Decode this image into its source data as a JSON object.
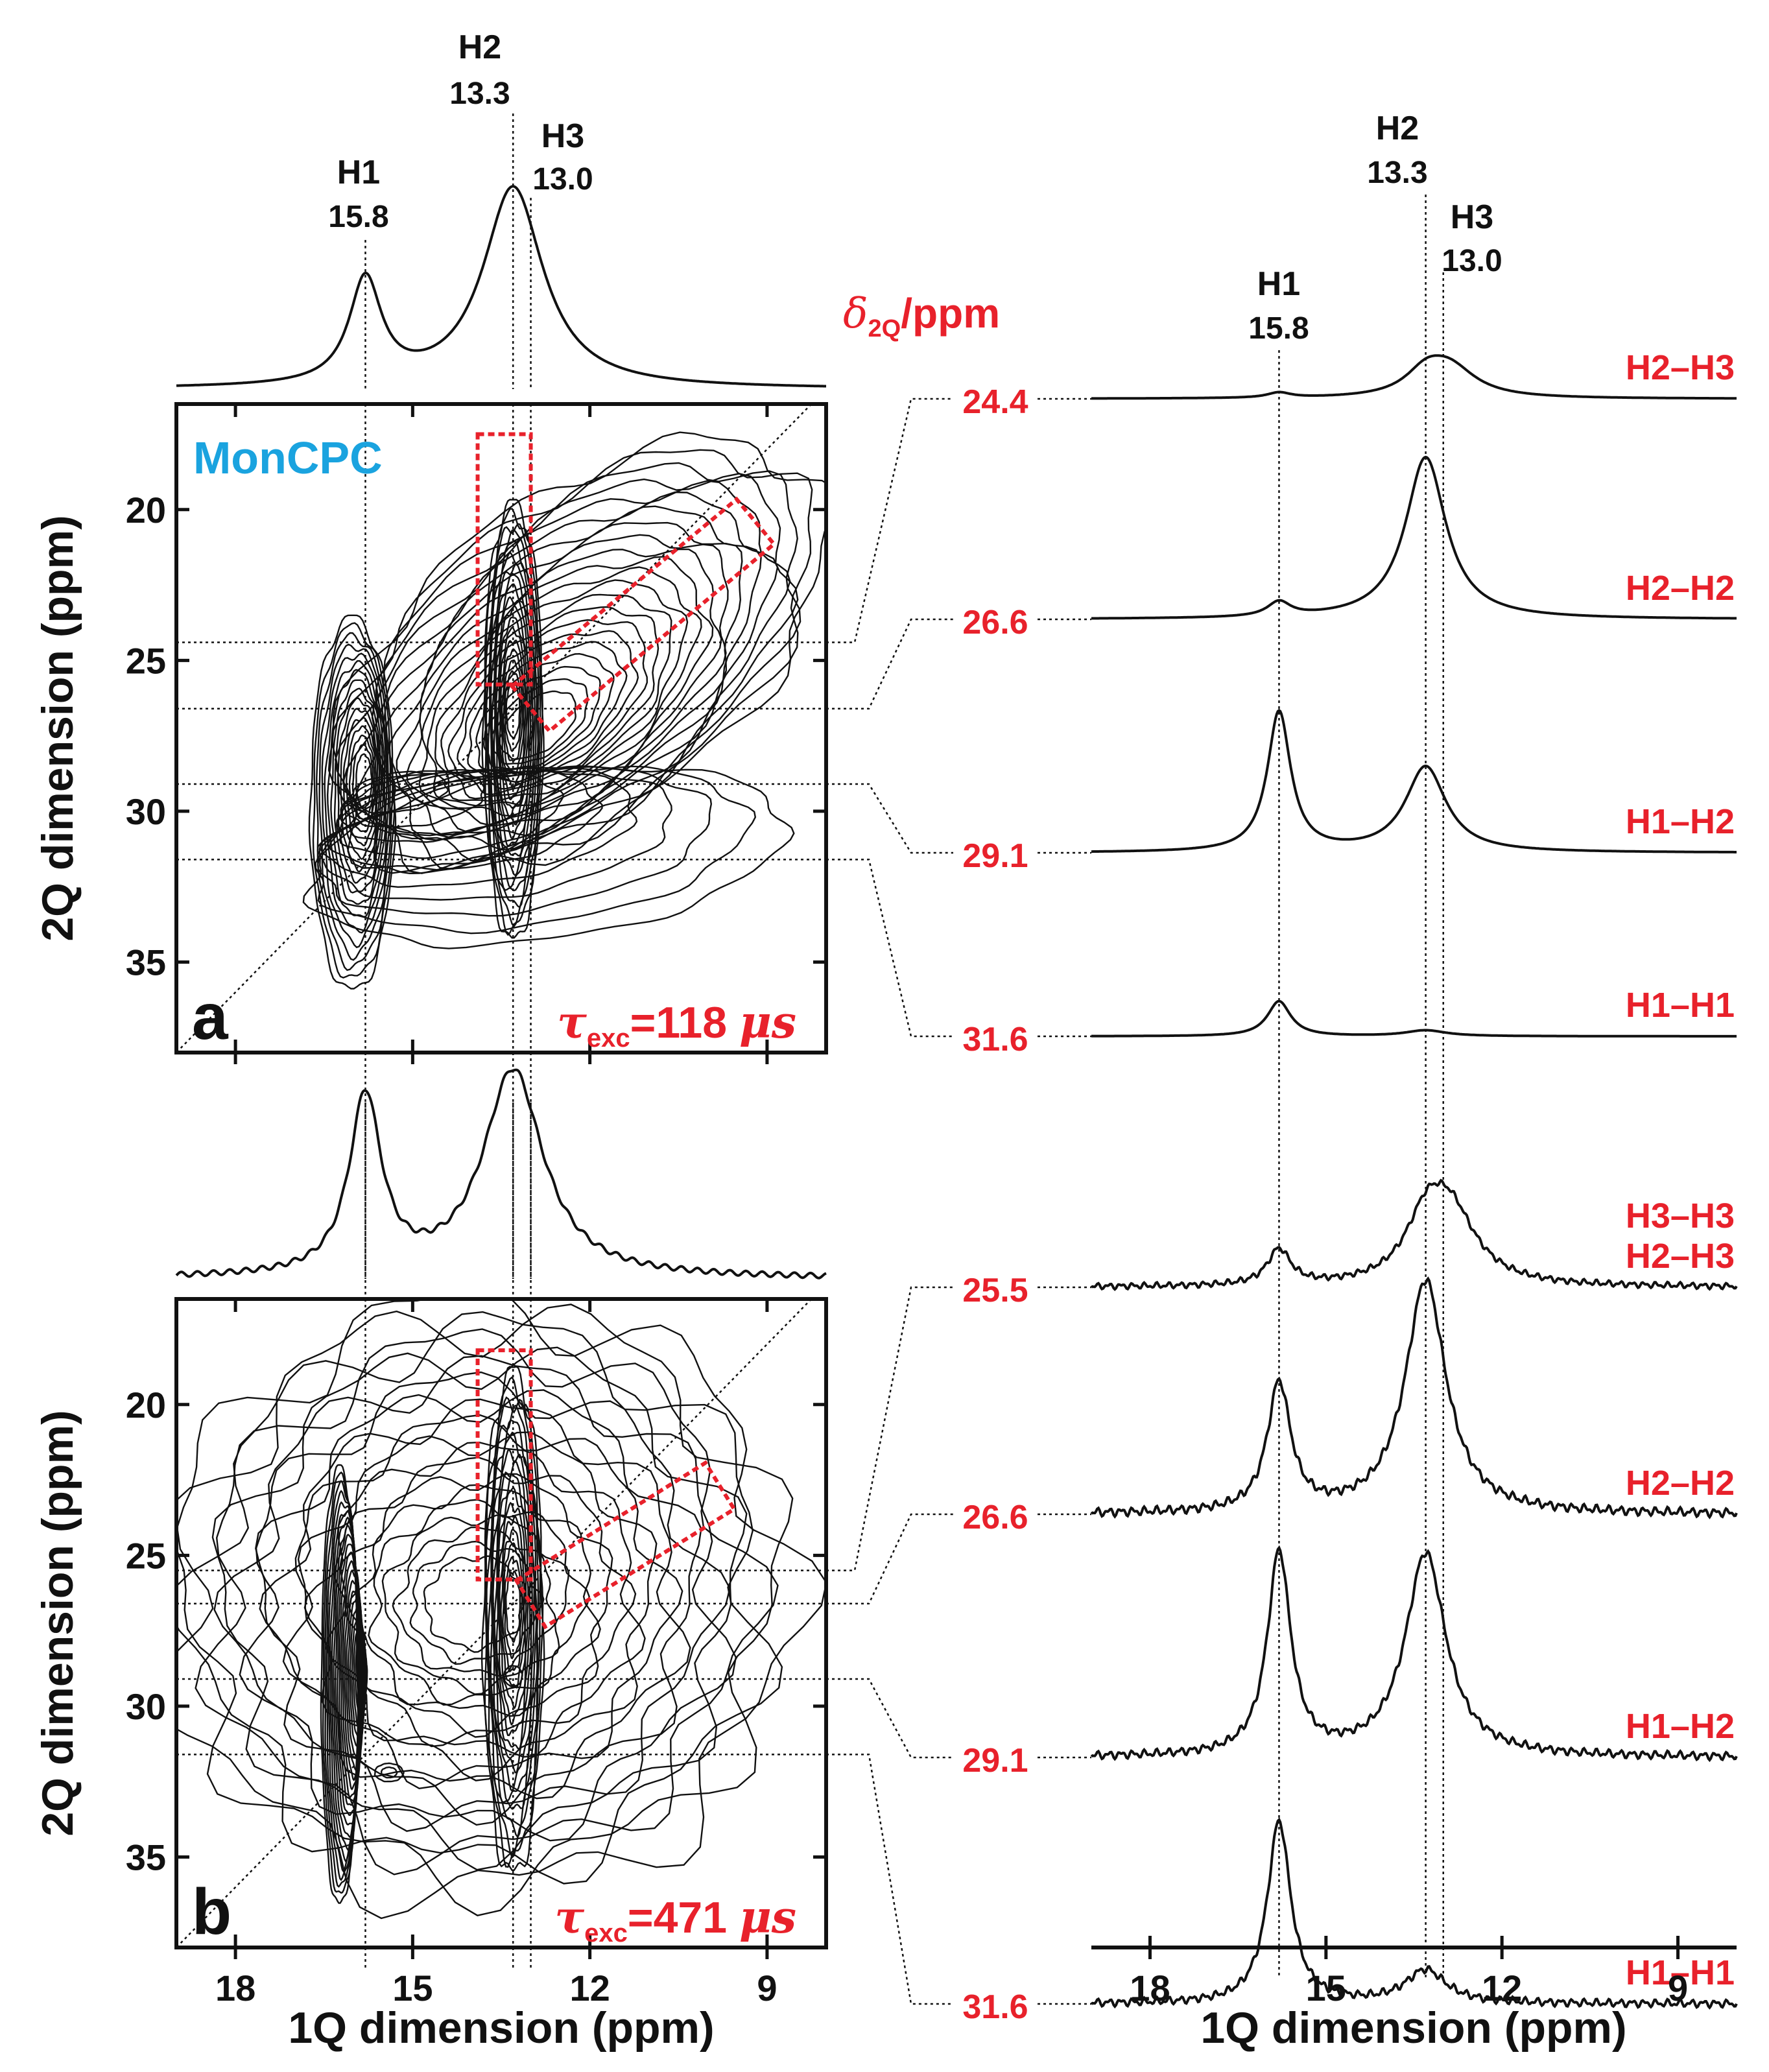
{
  "colors": {
    "ink": "#111111",
    "accent": "#e8212b",
    "brand": "#1aa3df"
  },
  "panel_a": {
    "letter": "a",
    "sample": "MonCPC",
    "tau_symbol": "τ",
    "tau_sub": "exc",
    "tau_value": "=118 ",
    "tau_unit": "μs",
    "peaks": [
      {
        "label": "H1",
        "ppm_text": "15.8"
      },
      {
        "label": "H2",
        "ppm_text": "13.3"
      },
      {
        "label": "H3",
        "ppm_text": "13.0"
      }
    ]
  },
  "panel_b": {
    "letter": "b",
    "tau_symbol": "τ",
    "tau_sub": "exc",
    "tau_value": "=471 ",
    "tau_unit": "μs"
  },
  "right": {
    "delta_symbol": "δ",
    "delta_sub": "2Q",
    "delta_unit": "/ppm",
    "peaks": [
      {
        "label": "H1",
        "ppm_text": "15.8"
      },
      {
        "label": "H2",
        "ppm_text": "13.3"
      },
      {
        "label": "H3",
        "ppm_text": "13.0"
      }
    ]
  },
  "chart_data": [
    {
      "type": "contour",
      "panel": "a",
      "xlabel": "1Q dimension (ppm)",
      "ylabel": "2Q dimension (ppm)",
      "xlim": [
        19.0,
        8.0
      ],
      "ylim": [
        16.5,
        38.0
      ],
      "x_ticks": [
        18,
        15,
        12,
        9
      ],
      "y_ticks": [
        20,
        25,
        30,
        35
      ],
      "peak_positions_ppm": [
        15.8,
        13.3,
        13.0
      ],
      "slice_positions_ppm": [
        24.4,
        26.6,
        29.1,
        31.6
      ],
      "contour_centers": [
        {
          "x": 15.8,
          "y": 28.9
        },
        {
          "x": 13.3,
          "y": 26.6
        }
      ],
      "highlight_boxes": [
        {
          "kind": "vertical",
          "x_range": [
            13.9,
            13.0
          ],
          "y_range": [
            17.5,
            25.8
          ]
        },
        {
          "kind": "diagonal",
          "from": [
            13.0,
            26.6
          ],
          "to": [
            9.2,
            20.4
          ]
        }
      ]
    },
    {
      "type": "contour",
      "panel": "b",
      "xlabel": "1Q dimension (ppm)",
      "ylabel": "2Q dimension (ppm)",
      "xlim": [
        19.0,
        8.0
      ],
      "ylim": [
        16.5,
        38.0
      ],
      "x_ticks": [
        18,
        15,
        12,
        9
      ],
      "y_ticks": [
        20,
        25,
        30,
        35
      ],
      "peak_positions_ppm": [
        15.8,
        13.3,
        13.0
      ],
      "slice_positions_ppm": [
        25.5,
        26.6,
        29.1,
        31.6
      ],
      "contour_centers": [
        {
          "x": 15.8,
          "y": 28.9
        },
        {
          "x": 13.3,
          "y": 26.6
        },
        {
          "x": 13.3,
          "y": 29.0
        },
        {
          "x": 15.4,
          "y": 32.2
        }
      ],
      "highlight_boxes": [
        {
          "kind": "vertical",
          "x_range": [
            13.9,
            13.0
          ],
          "y_range": [
            18.2,
            25.8
          ]
        },
        {
          "kind": "diagonal",
          "from": [
            13.0,
            26.6
          ],
          "to": [
            9.8,
            22.7
          ]
        }
      ]
    },
    {
      "type": "line",
      "panel": "right",
      "xlabel": "1Q dimension (ppm)",
      "xlim": [
        19.0,
        8.0
      ],
      "x_ticks": [
        18,
        15,
        12,
        9
      ],
      "series": [
        {
          "group": "a",
          "delta_2q": "24.4",
          "assignment": [
            "H2–H3"
          ],
          "peaks": [
            {
              "x": 15.8,
              "h": 0.04
            },
            {
              "x": 13.3,
              "h": 0.16
            },
            {
              "x": 12.9,
              "h": 0.23
            }
          ]
        },
        {
          "group": "a",
          "delta_2q": "26.6",
          "assignment": [
            "H2–H2"
          ],
          "peaks": [
            {
              "x": 15.8,
              "h": 0.09
            },
            {
              "x": 13.3,
              "h": 1.0
            }
          ]
        },
        {
          "group": "a",
          "delta_2q": "29.1",
          "assignment": [
            "H1–H2"
          ],
          "peaks": [
            {
              "x": 15.8,
              "h": 0.72
            },
            {
              "x": 13.3,
              "h": 0.44
            }
          ]
        },
        {
          "group": "a",
          "delta_2q": "31.6",
          "assignment": [
            "H1–H1"
          ],
          "peaks": [
            {
              "x": 15.8,
              "h": 0.18
            },
            {
              "x": 13.3,
              "h": 0.03
            }
          ]
        },
        {
          "group": "b",
          "delta_2q": "25.5",
          "assignment": [
            "H3–H3",
            "H2–H3"
          ],
          "peaks": [
            {
              "x": 15.8,
              "h": 0.22
            },
            {
              "x": 13.3,
              "h": 0.3
            },
            {
              "x": 12.9,
              "h": 0.45
            }
          ]
        },
        {
          "group": "b",
          "delta_2q": "26.6",
          "assignment": [
            "H2–H2"
          ],
          "peaks": [
            {
              "x": 15.8,
              "h": 0.55
            },
            {
              "x": 13.3,
              "h": 1.0
            }
          ]
        },
        {
          "group": "b",
          "delta_2q": "29.1",
          "assignment": [
            "H1–H2"
          ],
          "peaks": [
            {
              "x": 15.8,
              "h": 0.95
            },
            {
              "x": 13.3,
              "h": 0.95
            }
          ]
        },
        {
          "group": "b",
          "delta_2q": "31.6",
          "assignment": [
            "H1–H1"
          ],
          "peaks": [
            {
              "x": 15.8,
              "h": 0.88
            },
            {
              "x": 13.3,
              "h": 0.16
            }
          ]
        }
      ]
    },
    {
      "type": "line",
      "panel": "projection-a",
      "peaks": [
        {
          "x": 15.8,
          "h": 0.52
        },
        {
          "x": 13.3,
          "h": 1.0
        }
      ]
    },
    {
      "type": "line",
      "panel": "projection-b",
      "peaks": [
        {
          "x": 15.8,
          "h": 0.86
        },
        {
          "x": 13.3,
          "h": 1.0
        }
      ]
    }
  ]
}
